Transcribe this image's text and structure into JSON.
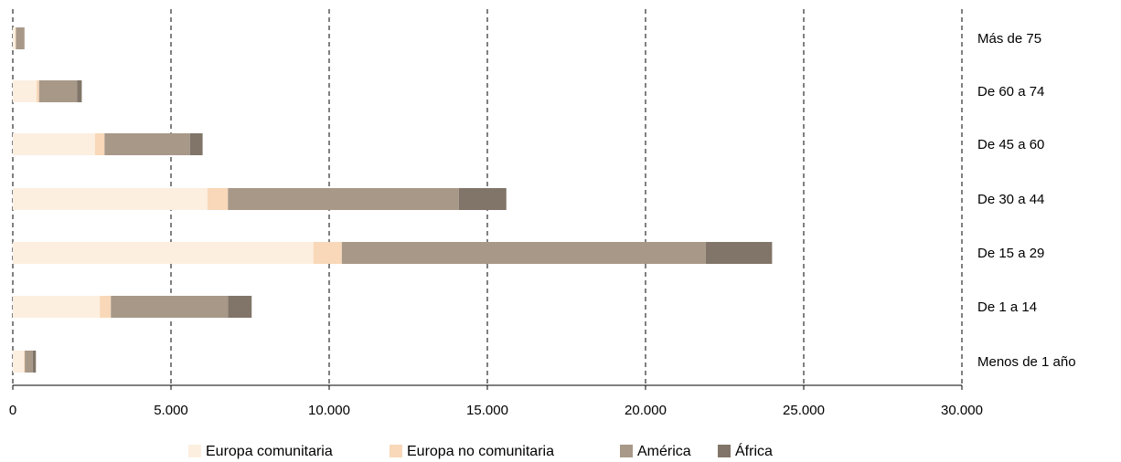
{
  "chart_data": {
    "type": "bar",
    "orientation": "horizontal",
    "stacked": true,
    "categories": [
      "Menos de 1 año",
      "De 1 a 14",
      "De 15 a 29",
      "De 30 a 44",
      "De 45 a 60",
      "De 60 a 74",
      "Más de 75"
    ],
    "series": [
      {
        "name": "Europa comunitaria",
        "color": "#fcefe0",
        "values": [
          350,
          2750,
          9500,
          6150,
          2600,
          750,
          80
        ]
      },
      {
        "name": "Europa no comunitaria",
        "color": "#f8d8b8",
        "values": [
          30,
          350,
          900,
          650,
          300,
          80,
          20
        ]
      },
      {
        "name": "América",
        "color": "#a89888",
        "values": [
          250,
          3700,
          11500,
          7300,
          2700,
          1200,
          270
        ]
      },
      {
        "name": "África",
        "color": "#807568",
        "values": [
          100,
          750,
          2100,
          1500,
          400,
          150,
          0
        ]
      }
    ],
    "xlim": [
      0,
      30000
    ],
    "xticks": [
      "0",
      "5.000",
      "10.000",
      "15.000",
      "20.000",
      "25.000",
      "30.000"
    ],
    "xtick_values": [
      0,
      5000,
      10000,
      15000,
      20000,
      25000,
      30000
    ],
    "grid": "vertical-dashed",
    "legend_position": "bottom",
    "category_label_position": "right"
  }
}
